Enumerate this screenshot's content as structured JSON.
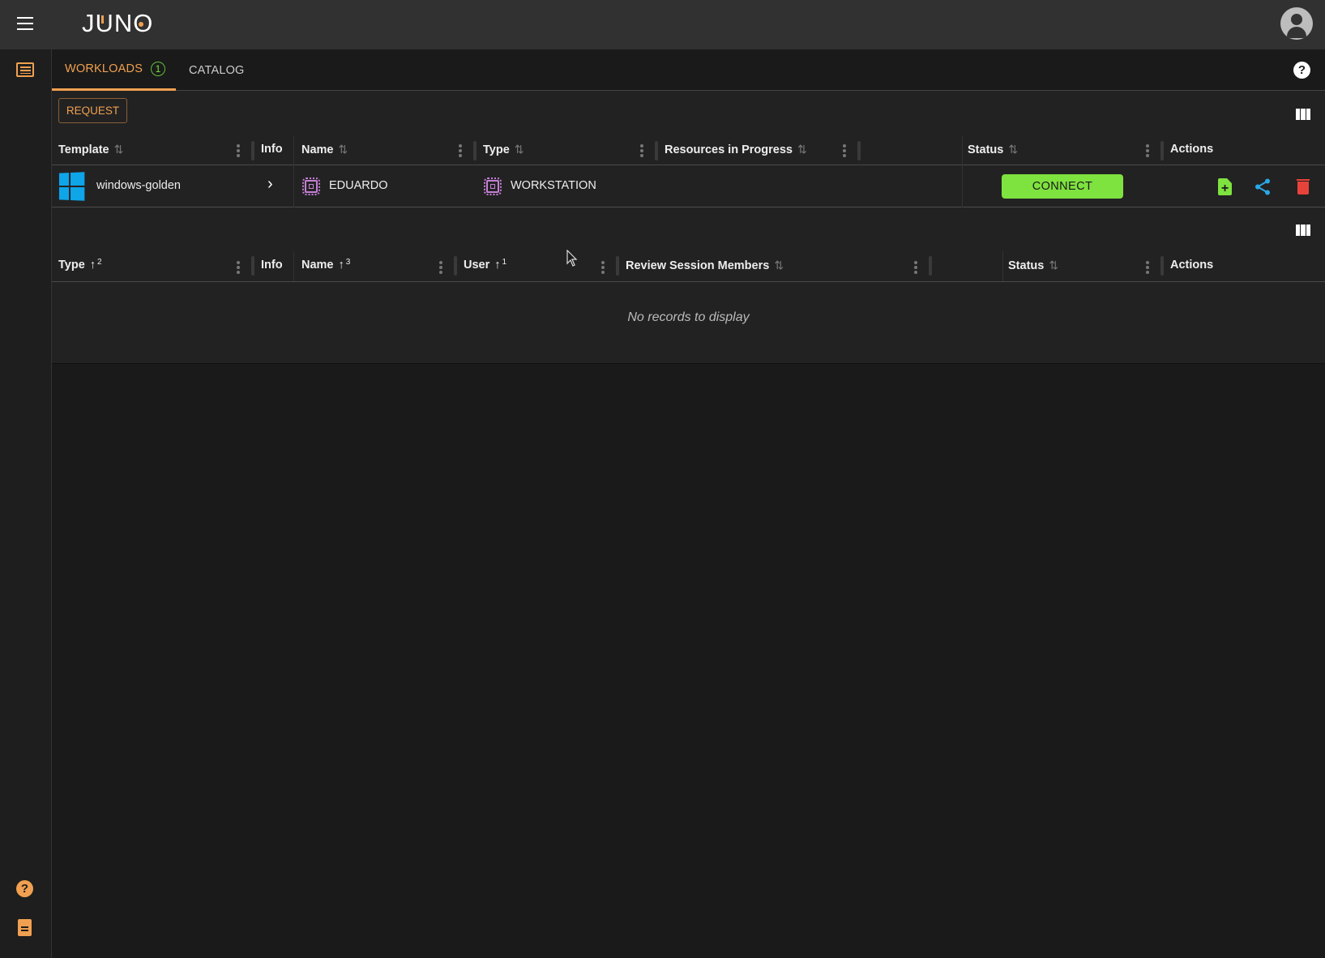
{
  "app": {
    "logo": "JUNO",
    "colors": {
      "accent": "#f0a050",
      "connect": "#7ee23f",
      "share": "#29a8e8",
      "delete": "#e8433a",
      "chip": "#c57fd6"
    }
  },
  "tabs": [
    {
      "label": "WORKLOADS",
      "badge": "1",
      "active": true
    },
    {
      "label": "CATALOG",
      "active": false
    }
  ],
  "toolbar": {
    "request_label": "REQUEST"
  },
  "workloads_table": {
    "headers": [
      "Template",
      "Info",
      "Name",
      "Type",
      "Resources in Progress",
      "Status",
      "Actions"
    ],
    "rows": [
      {
        "template": "windows-golden",
        "name": "EDUARDO",
        "type": "WORKSTATION",
        "resources": "",
        "status_button": "CONNECT",
        "actions": [
          "add-file-icon",
          "share-icon",
          "delete-icon"
        ]
      }
    ]
  },
  "sessions_table": {
    "headers": [
      {
        "label": "Type",
        "sort_order": "2"
      },
      {
        "label": "Info"
      },
      {
        "label": "Name",
        "sort_order": "3"
      },
      {
        "label": "User",
        "sort_order": "1"
      },
      {
        "label": "Review Session Members"
      },
      {
        "label": "Status"
      },
      {
        "label": "Actions"
      }
    ],
    "empty_message": "No records to display"
  }
}
